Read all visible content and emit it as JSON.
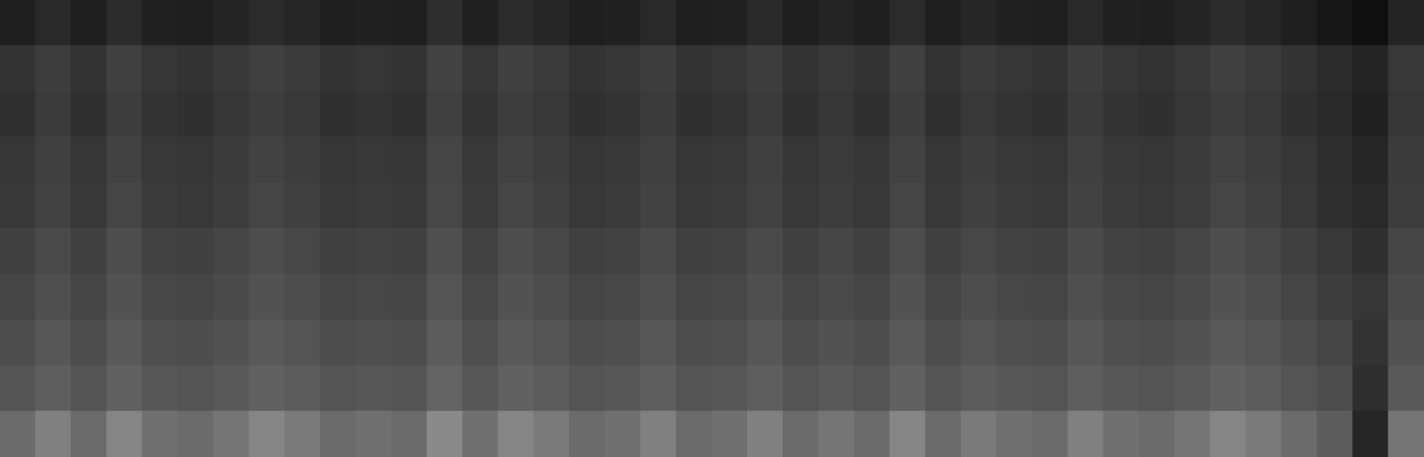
{
  "chart_data": {
    "type": "heatmap",
    "tick_labels": false,
    "zlim": [
      0,
      100
    ],
    "cells": [
      [
        12,
        16,
        12,
        17,
        13,
        12,
        14,
        17,
        15,
        12,
        13,
        12,
        18,
        13,
        17,
        15,
        12,
        13,
        16,
        12,
        13,
        16,
        12,
        14,
        12,
        17,
        12,
        15,
        13,
        12,
        16,
        13,
        12,
        14,
        17,
        15,
        12,
        9,
        6,
        14
      ],
      [
        20,
        24,
        20,
        25,
        21,
        20,
        22,
        25,
        23,
        20,
        21,
        20,
        26,
        21,
        25,
        23,
        20,
        21,
        24,
        20,
        21,
        24,
        20,
        22,
        20,
        25,
        20,
        23,
        21,
        20,
        24,
        21,
        20,
        22,
        25,
        23,
        20,
        17,
        14,
        22
      ],
      [
        19,
        23,
        19,
        24,
        20,
        19,
        21,
        24,
        22,
        19,
        20,
        19,
        25,
        20,
        24,
        22,
        19,
        20,
        23,
        19,
        20,
        23,
        19,
        21,
        19,
        24,
        19,
        22,
        20,
        19,
        23,
        20,
        19,
        21,
        24,
        22,
        19,
        16,
        13,
        21
      ],
      [
        21,
        25,
        21,
        26,
        22,
        21,
        23,
        26,
        24,
        21,
        22,
        21,
        27,
        22,
        26,
        24,
        21,
        22,
        25,
        21,
        22,
        25,
        21,
        23,
        21,
        26,
        21,
        24,
        22,
        21,
        25,
        22,
        21,
        23,
        26,
        24,
        21,
        18,
        15,
        23
      ],
      [
        22,
        26,
        22,
        27,
        23,
        22,
        24,
        27,
        25,
        22,
        23,
        22,
        28,
        23,
        27,
        25,
        22,
        23,
        26,
        22,
        23,
        26,
        22,
        24,
        22,
        27,
        22,
        25,
        23,
        22,
        26,
        23,
        22,
        24,
        27,
        25,
        22,
        19,
        16,
        24
      ],
      [
        25,
        29,
        25,
        30,
        26,
        25,
        27,
        30,
        28,
        25,
        26,
        25,
        31,
        26,
        30,
        28,
        25,
        26,
        29,
        25,
        26,
        29,
        25,
        27,
        25,
        30,
        25,
        28,
        26,
        25,
        29,
        26,
        25,
        27,
        30,
        28,
        25,
        22,
        19,
        27
      ],
      [
        27,
        31,
        27,
        32,
        28,
        27,
        29,
        32,
        30,
        27,
        28,
        27,
        33,
        28,
        32,
        30,
        27,
        28,
        31,
        27,
        28,
        31,
        27,
        29,
        27,
        32,
        27,
        30,
        28,
        27,
        31,
        28,
        27,
        29,
        32,
        30,
        27,
        24,
        21,
        29
      ],
      [
        30,
        34,
        30,
        35,
        31,
        30,
        32,
        35,
        33,
        30,
        31,
        30,
        36,
        31,
        35,
        33,
        30,
        31,
        34,
        30,
        31,
        34,
        30,
        32,
        30,
        35,
        30,
        33,
        31,
        30,
        34,
        31,
        30,
        32,
        35,
        33,
        30,
        27,
        20,
        32
      ],
      [
        33,
        37,
        33,
        38,
        34,
        33,
        35,
        38,
        36,
        33,
        34,
        33,
        39,
        34,
        38,
        36,
        33,
        34,
        37,
        33,
        34,
        37,
        33,
        35,
        33,
        38,
        33,
        36,
        34,
        33,
        37,
        34,
        33,
        35,
        38,
        36,
        33,
        30,
        18,
        35
      ],
      [
        42,
        50,
        42,
        52,
        44,
        42,
        46,
        52,
        48,
        42,
        44,
        42,
        54,
        44,
        52,
        48,
        42,
        44,
        50,
        42,
        44,
        50,
        42,
        46,
        42,
        52,
        42,
        48,
        44,
        42,
        50,
        44,
        42,
        46,
        52,
        48,
        42,
        36,
        15,
        46
      ]
    ]
  }
}
